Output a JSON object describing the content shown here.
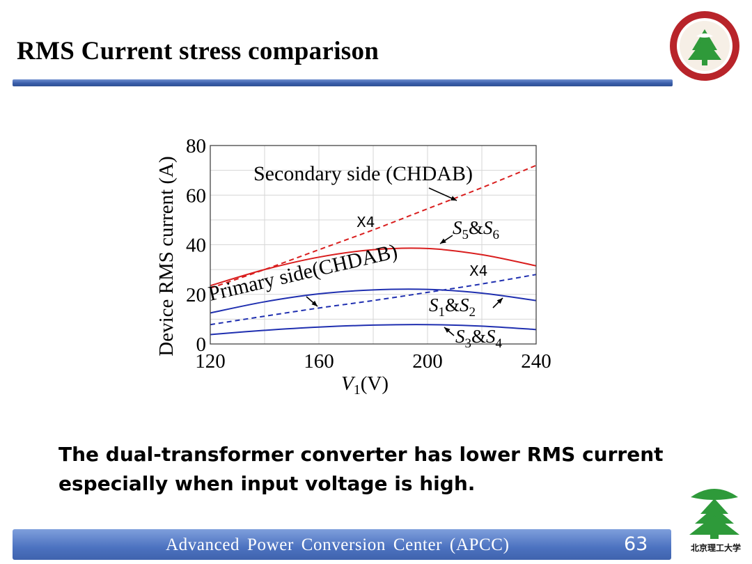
{
  "slide": {
    "title": "RMS Current stress comparison",
    "conclusion_lines": [
      "The dual-transformer converter has lower RMS current",
      "especially when input voltage is high."
    ],
    "footer": "Advanced  Power  Conversion  Center (APCC)",
    "page_number": "63",
    "logo_caption": "北京理工大学"
  },
  "colors": {
    "accent_blue": "#3a5eaa",
    "red_series": "#d91e1e",
    "blue_series": "#1f2fb0"
  },
  "chart_data": {
    "type": "line",
    "xlabel": "V1(V)",
    "ylabel": "Device RMS current (A)",
    "xlim": [
      120,
      240
    ],
    "ylim": [
      0,
      80
    ],
    "xticks": [
      120,
      160,
      200,
      240
    ],
    "yticks": [
      0,
      20,
      40,
      60,
      80
    ],
    "grid": true,
    "x": [
      120,
      140,
      160,
      180,
      200,
      220,
      240
    ],
    "series": [
      {
        "name": "Secondary side (CHDAB)",
        "color": "#d91e1e",
        "dashed": true,
        "values": [
          22.5,
          30,
          38,
          46,
          54.5,
          63,
          72
        ]
      },
      {
        "name": "S5&S6",
        "color": "#d91e1e",
        "dashed": false,
        "values": [
          23.5,
          30,
          35,
          38,
          38.5,
          36,
          31.5
        ]
      },
      {
        "name": "Primary side(CHDAB)",
        "color": "#1f2fb0",
        "dashed": true,
        "values": [
          7.8,
          11.2,
          14.5,
          17.5,
          20.8,
          24.2,
          28
        ]
      },
      {
        "name": "S1&S2",
        "color": "#1f2fb0",
        "dashed": false,
        "values": [
          12.5,
          17,
          20.2,
          21.8,
          22,
          20.5,
          17.5
        ]
      },
      {
        "name": "S3&S4",
        "color": "#1f2fb0",
        "dashed": false,
        "values": [
          3.8,
          5.5,
          6.8,
          7.6,
          7.8,
          7.2,
          5.8
        ]
      }
    ],
    "annotations": [
      {
        "text": "Secondary side (CHDAB)",
        "x": 122,
        "y": 65
      },
      {
        "text": "x4",
        "x": 180,
        "y": 50
      },
      {
        "text": "S5&S6",
        "x": 208,
        "y": 46
      },
      {
        "text": "Primary side(CHDAB)",
        "x": 160,
        "y": 24
      },
      {
        "text": "x4",
        "x": 228,
        "y": 28
      },
      {
        "text": "S1&S2",
        "x": 205,
        "y": 12
      },
      {
        "text": "S3&S4",
        "x": 205,
        "y": 0
      }
    ]
  }
}
